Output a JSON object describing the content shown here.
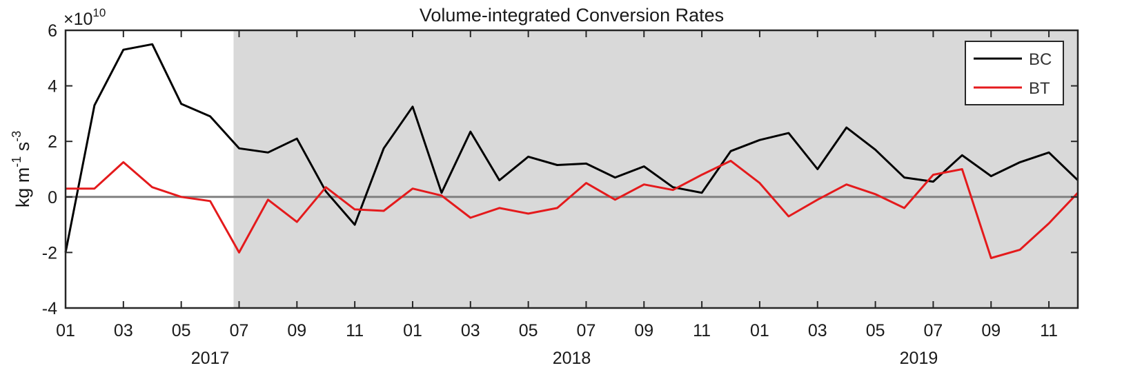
{
  "chart_data": {
    "type": "line",
    "title": "Volume-integrated Conversion Rates",
    "ylabel": {
      "base": "kg m",
      "sup1": "-1",
      "mid": " s",
      "sup2": "-3"
    },
    "y_multiplier": {
      "base": "×10",
      "exp": "10"
    },
    "ylim": [
      -4,
      6
    ],
    "yticks": [
      -4,
      -2,
      0,
      2,
      4,
      6
    ],
    "xlim": [
      1,
      36
    ],
    "x": [
      1,
      2,
      3,
      4,
      5,
      6,
      7,
      8,
      9,
      10,
      11,
      12,
      13,
      14,
      15,
      16,
      17,
      18,
      19,
      20,
      21,
      22,
      23,
      24,
      25,
      26,
      27,
      28,
      29,
      30,
      31,
      32,
      33,
      34,
      35,
      36
    ],
    "xtick_positions": [
      1,
      3,
      5,
      7,
      9,
      11,
      13,
      15,
      17,
      19,
      21,
      23,
      25,
      27,
      29,
      31,
      33,
      35
    ],
    "xtick_labels": [
      "01",
      "03",
      "05",
      "07",
      "09",
      "11",
      "01",
      "03",
      "05",
      "07",
      "09",
      "11",
      "01",
      "03",
      "05",
      "07",
      "09",
      "11"
    ],
    "years": [
      {
        "label": "2017",
        "center": 6
      },
      {
        "label": "2018",
        "center": 18.5
      },
      {
        "label": "2019",
        "center": 30.5
      }
    ],
    "shaded_region": {
      "from": 7,
      "to": 36,
      "color": "#d9d9d9"
    },
    "zero_line_color": "#808080",
    "series": [
      {
        "name": "BC",
        "color": "#000000",
        "values": [
          -2.0,
          3.3,
          5.3,
          5.5,
          3.35,
          2.9,
          1.75,
          1.6,
          2.1,
          0.2,
          -1.0,
          1.75,
          3.25,
          0.15,
          2.35,
          0.6,
          1.45,
          1.15,
          1.2,
          0.7,
          1.1,
          0.35,
          0.15,
          1.65,
          2.05,
          2.3,
          1.0,
          2.5,
          1.7,
          0.7,
          0.55,
          1.5,
          0.75,
          1.25,
          1.6,
          0.6
        ]
      },
      {
        "name": "BT",
        "color": "#e41a1c",
        "values": [
          0.3,
          0.3,
          1.25,
          0.35,
          0.0,
          -0.15,
          -2.0,
          -0.1,
          -0.9,
          0.35,
          -0.45,
          -0.5,
          0.3,
          0.05,
          -0.75,
          -0.4,
          -0.6,
          -0.4,
          0.5,
          -0.1,
          0.45,
          0.25,
          0.8,
          1.3,
          0.5,
          -0.7,
          -0.1,
          0.45,
          0.1,
          -0.4,
          0.8,
          1.0,
          -2.2,
          -1.9,
          -0.95,
          0.15
        ]
      }
    ],
    "legend_position": "top-right",
    "grid": false
  }
}
